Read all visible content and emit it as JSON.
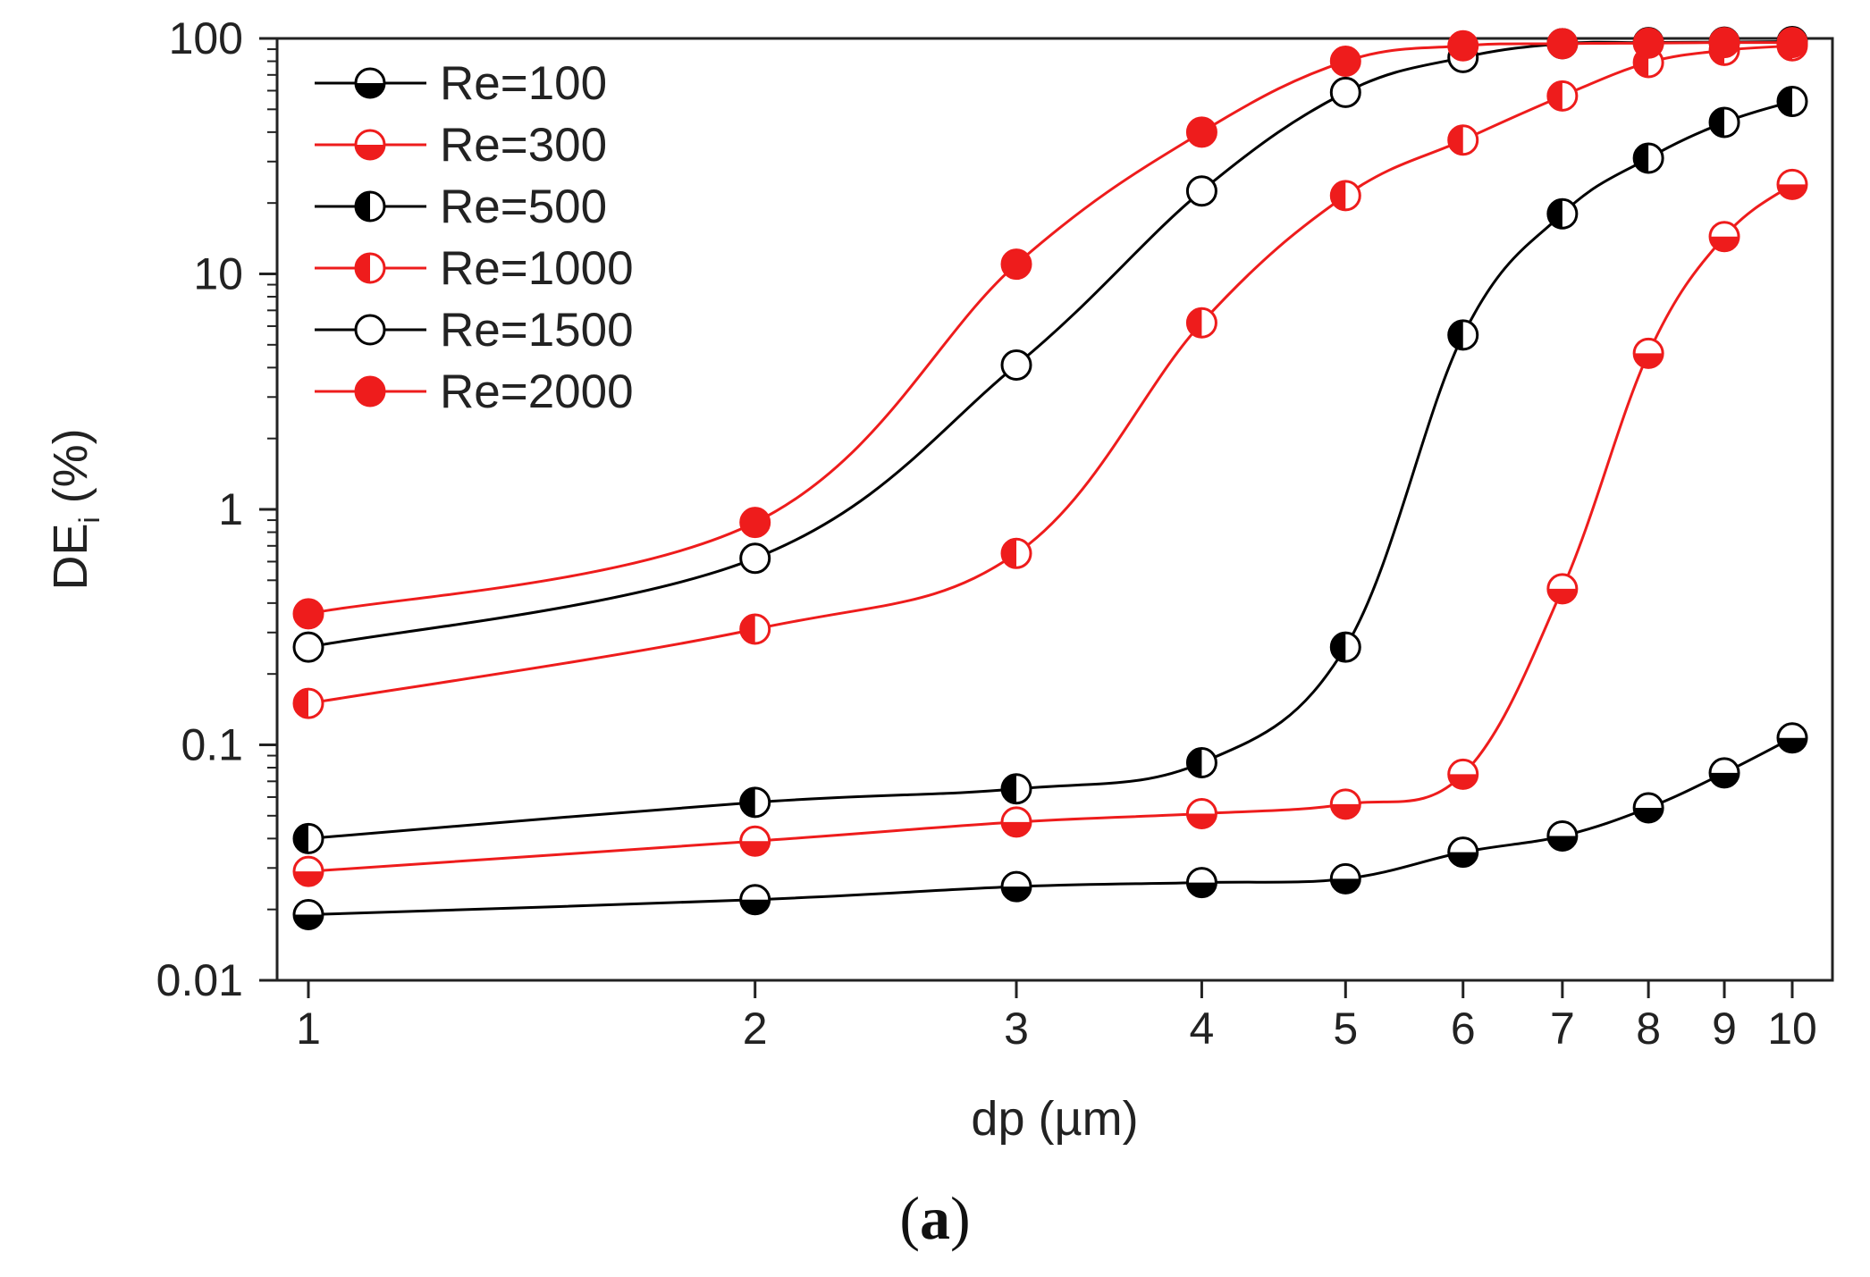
{
  "chart_data": {
    "type": "line",
    "title": "",
    "xlabel": "dp (µm)",
    "ylabel_main": "DE",
    "ylabel_sub": "i",
    "ylabel_unit": " (%)",
    "xscale": "log",
    "yscale": "log",
    "xlim": [
      1,
      10
    ],
    "ylim": [
      0.01,
      100
    ],
    "x_ticks": [
      1,
      2,
      3,
      4,
      5,
      6,
      7,
      8,
      9,
      10
    ],
    "x_tick_labels": [
      "1",
      "2",
      "3",
      "4",
      "5",
      "6",
      "7",
      "8",
      "9",
      "10"
    ],
    "y_ticks": [
      0.01,
      0.1,
      1,
      10,
      100
    ],
    "y_tick_labels": [
      "0.01",
      "0.1",
      "1",
      "10",
      "100"
    ],
    "legend_position": "top-left",
    "panel_label": "(a)",
    "panel_letter": "a",
    "panel_open": "(",
    "panel_close": ")",
    "x": [
      1,
      2,
      3,
      4,
      5,
      6,
      7,
      8,
      9,
      10
    ],
    "series": [
      {
        "name": "Re=100",
        "color": "#000000",
        "marker": "half-bottom",
        "values": [
          0.019,
          0.022,
          0.025,
          0.026,
          0.027,
          0.035,
          0.041,
          0.054,
          0.076,
          0.107
        ]
      },
      {
        "name": "Re=300",
        "color": "#ee1c1c",
        "marker": "half-bottom",
        "values": [
          0.029,
          0.039,
          0.047,
          0.051,
          0.056,
          0.075,
          0.46,
          4.6,
          14.4,
          24.0
        ]
      },
      {
        "name": "Re=500",
        "color": "#000000",
        "marker": "half-left",
        "values": [
          0.04,
          0.057,
          0.065,
          0.084,
          0.26,
          5.5,
          18.0,
          31.0,
          44.0,
          54.0
        ]
      },
      {
        "name": "Re=1000",
        "color": "#ee1c1c",
        "marker": "half-left",
        "values": [
          0.15,
          0.31,
          0.65,
          6.2,
          21.5,
          37.0,
          57.0,
          79.0,
          89.0,
          93.0
        ]
      },
      {
        "name": "Re=1500",
        "color": "#000000",
        "marker": "open",
        "values": [
          0.26,
          0.62,
          4.1,
          22.5,
          59.0,
          83.0,
          95.0,
          96.0,
          96.5,
          97.0
        ]
      },
      {
        "name": "Re=2000",
        "color": "#ee1c1c",
        "marker": "filled",
        "values": [
          0.36,
          0.88,
          11.0,
          40.0,
          80.0,
          93.0,
          95.0,
          95.5,
          96.0,
          96.0
        ]
      }
    ]
  }
}
